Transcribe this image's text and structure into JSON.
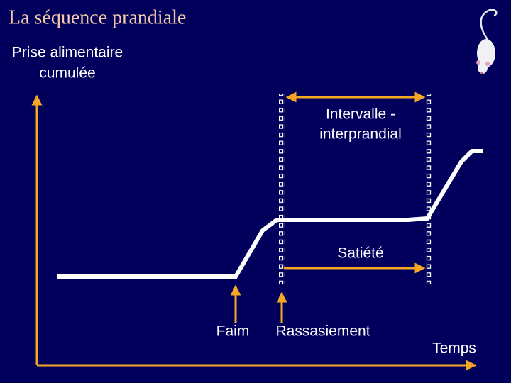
{
  "title": "La séquence prandiale",
  "y_axis_label": [
    "Prise alimentaire",
    "cumulée"
  ],
  "x_axis_label": "Temps",
  "interval_label": [
    "Intervalle -",
    "interprandial"
  ],
  "satiety_label": "Satiété",
  "hunger_label": "Faim",
  "satiation_label": "Rassasiement"
}
